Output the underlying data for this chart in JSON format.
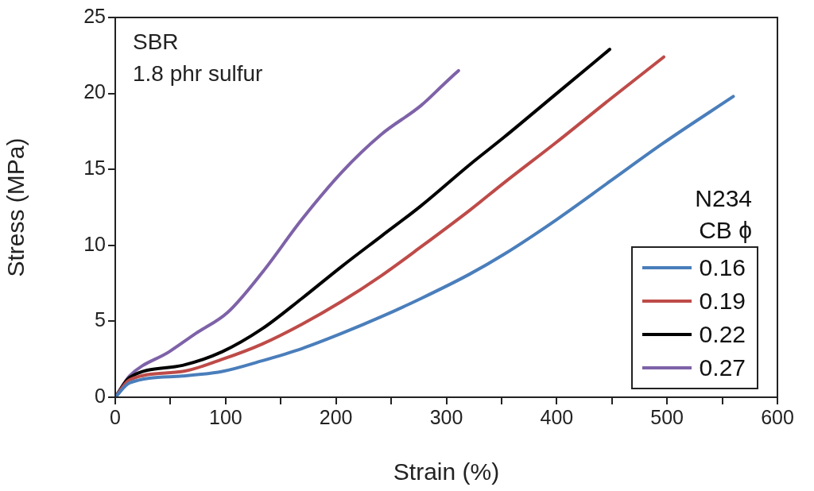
{
  "chart_data": {
    "type": "line",
    "xlabel": "Strain (%)",
    "ylabel": "Stress (MPa)",
    "legend_title": "N234\nCB ϕ",
    "annotations": [
      "SBR",
      "1.8 phr sulfur"
    ],
    "xlim": [
      0,
      600
    ],
    "xticks": [
      0,
      {
        "value": 50,
        "label": null
      },
      100,
      {
        "value": 150,
        "label": null
      },
      200,
      {
        "value": 250,
        "label": null
      },
      300,
      {
        "value": 350,
        "label": null
      },
      400,
      {
        "value": 450,
        "label": null
      },
      500,
      {
        "value": 550,
        "label": null
      },
      600
    ],
    "ylim": [
      0,
      25
    ],
    "yticks": [
      0,
      5,
      10,
      15,
      20,
      25
    ],
    "grid": false,
    "legend": "bottom right",
    "marker": "none",
    "line_style": "solid",
    "series": [
      {
        "name": "0.16",
        "color": "#4a7ebb",
        "x": [
          0,
          13,
          61,
          97,
          133,
          169,
          205,
          241,
          277,
          321,
          352,
          400,
          448,
          496,
          560
        ],
        "values": [
          0,
          0.95,
          1.4,
          1.7,
          2.4,
          3.2,
          4.2,
          5.3,
          6.5,
          8.1,
          9.4,
          11.7,
          14.2,
          16.7,
          19.8
        ]
      },
      {
        "name": "0.19",
        "color": "#be4b48",
        "x": [
          0,
          13,
          61,
          97,
          133,
          169,
          205,
          241,
          277,
          321,
          352,
          400,
          448,
          497
        ],
        "values": [
          0,
          1.15,
          1.7,
          2.5,
          3.5,
          4.8,
          6.3,
          8.0,
          9.9,
          12.3,
          14.1,
          16.8,
          19.6,
          22.4
        ]
      },
      {
        "name": "0.22",
        "color": "#000000",
        "x": [
          0,
          13,
          61,
          97,
          133,
          169,
          205,
          241,
          277,
          321,
          352,
          400,
          448
        ],
        "values": [
          0,
          1.3,
          2.1,
          3.0,
          4.5,
          6.5,
          8.6,
          10.6,
          12.6,
          15.3,
          17.1,
          20.0,
          22.9
        ]
      },
      {
        "name": "0.27",
        "color": "#7e62a8",
        "x": [
          0,
          13,
          49,
          73,
          102,
          133,
          169,
          205,
          241,
          277,
          299,
          311
        ],
        "values": [
          0,
          1.4,
          3.0,
          4.2,
          5.6,
          8.2,
          11.7,
          14.8,
          17.3,
          19.2,
          20.7,
          21.5
        ]
      }
    ]
  }
}
